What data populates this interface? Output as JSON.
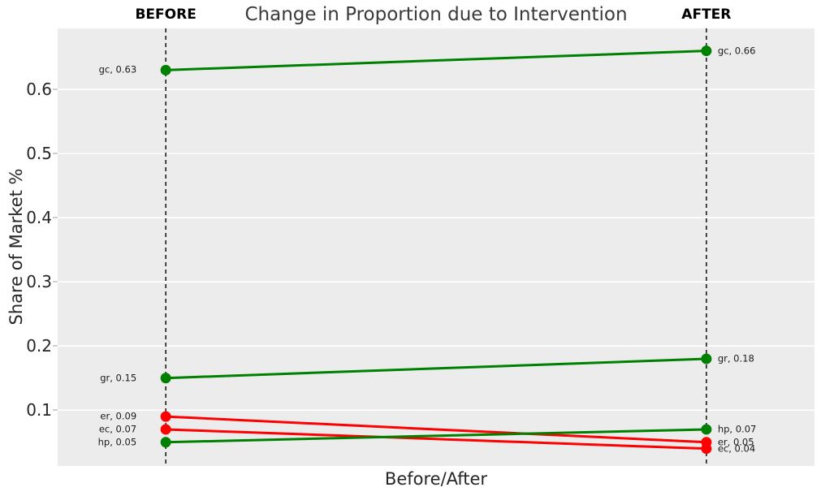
{
  "colors": {
    "increase": "#008000",
    "decrease": "#ff0000",
    "plot_bg": "#ececec",
    "grid": "#ffffff",
    "guide_line": "#000000",
    "title_text": "#3a3a3a",
    "tick_text": "#262626",
    "annotation_text": "#1a1a1a"
  },
  "chart_data": {
    "type": "line",
    "subtype": "slope-chart",
    "title": "Change in Proportion due to Intervention",
    "xlabel": "Before/After",
    "ylabel": "Share of Market %",
    "x_categories": [
      "BEFORE",
      "AFTER"
    ],
    "x_positions": [
      0,
      1
    ],
    "xlim": [
      -0.2,
      1.2
    ],
    "ylim": [
      0.013,
      0.695
    ],
    "grid": true,
    "legend": false,
    "yticks": [
      {
        "value": 0.1,
        "label": "0.1"
      },
      {
        "value": 0.2,
        "label": "0.2"
      },
      {
        "value": 0.3,
        "label": "0.3"
      },
      {
        "value": 0.4,
        "label": "0.4"
      },
      {
        "value": 0.5,
        "label": "0.5"
      },
      {
        "value": 0.6,
        "label": "0.6"
      }
    ],
    "series": [
      {
        "name": "gc",
        "before": 0.63,
        "after": 0.66,
        "trend": "up",
        "label_before": "gc, 0.63",
        "label_after": "gc, 0.66"
      },
      {
        "name": "gr",
        "before": 0.15,
        "after": 0.18,
        "trend": "up",
        "label_before": "gr, 0.15",
        "label_after": "gr, 0.18"
      },
      {
        "name": "er",
        "before": 0.09,
        "after": 0.05,
        "trend": "down",
        "label_before": "er, 0.09",
        "label_after": "er, 0.05"
      },
      {
        "name": "ec",
        "before": 0.07,
        "after": 0.04,
        "trend": "down",
        "label_before": "ec, 0.07",
        "label_after": "ec, 0.04"
      },
      {
        "name": "hp",
        "before": 0.05,
        "after": 0.07,
        "trend": "up",
        "label_before": "hp, 0.05",
        "label_after": "hp, 0.07"
      }
    ]
  }
}
